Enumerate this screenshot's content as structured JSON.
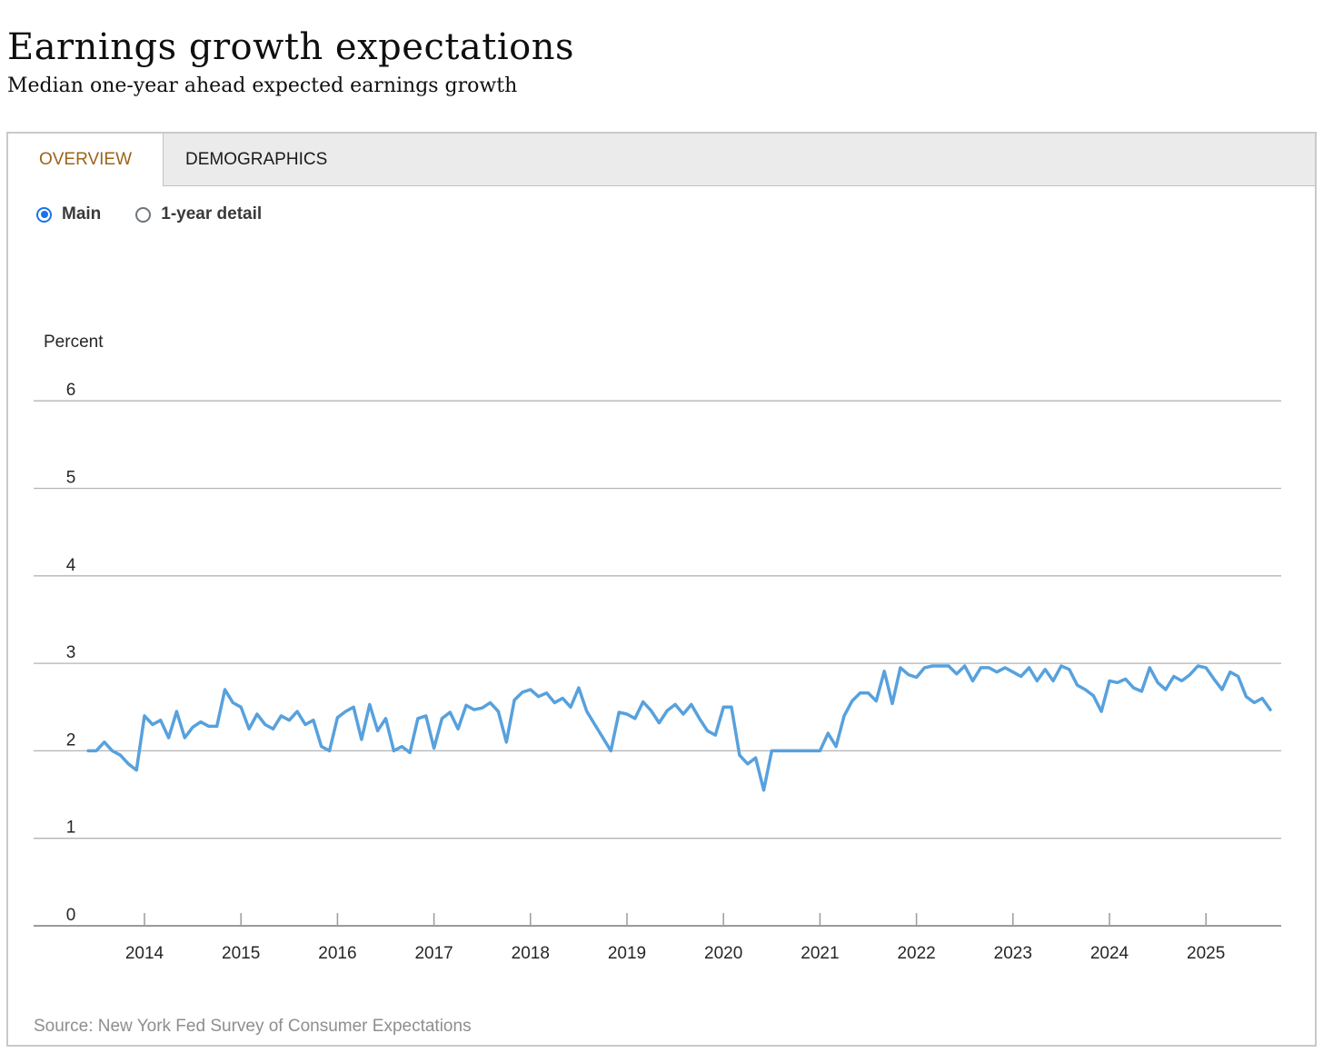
{
  "header": {
    "title": "Earnings growth expectations",
    "subtitle": "Median one-year ahead expected earnings growth"
  },
  "tabs": [
    {
      "label": "OVERVIEW",
      "active": true,
      "accent_color": "#9c6419"
    },
    {
      "label": "DEMOGRAPHICS",
      "active": false
    }
  ],
  "radios": [
    {
      "label": "Main",
      "selected": true,
      "accent_color": "#1a73e8"
    },
    {
      "label": "1-year detail",
      "selected": false
    }
  ],
  "source": {
    "text": "Source: New York Fed Survey of Consumer Expectations"
  },
  "chart_data": {
    "type": "line",
    "title": "Earnings growth expectations",
    "subtitle": "Median one-year ahead expected earnings growth",
    "ylabel": "Percent",
    "xlabel": "",
    "ylim": [
      0,
      6
    ],
    "yticks": [
      6,
      5,
      4,
      3,
      2,
      1,
      0
    ],
    "xticks": [
      2014,
      2015,
      2016,
      2017,
      2018,
      2019,
      2020,
      2021,
      2022,
      2023,
      2024,
      2025
    ],
    "grid": true,
    "legend_position": "none",
    "line_color": "#57a1dd",
    "grid_color": "#b4b4b4",
    "series": [
      {
        "name": "Median one-year ahead expected earnings growth",
        "start_month": "2013-06",
        "frequency": "monthly",
        "values": [
          2.0,
          2.0,
          2.1,
          2.0,
          1.95,
          1.85,
          1.78,
          2.4,
          2.3,
          2.35,
          2.15,
          2.45,
          2.15,
          2.27,
          2.33,
          2.28,
          2.28,
          2.7,
          2.55,
          2.5,
          2.25,
          2.42,
          2.3,
          2.25,
          2.4,
          2.35,
          2.45,
          2.3,
          2.35,
          2.05,
          2.0,
          2.38,
          2.45,
          2.5,
          2.13,
          2.53,
          2.23,
          2.37,
          2.0,
          2.05,
          1.98,
          2.37,
          2.4,
          2.03,
          2.37,
          2.44,
          2.25,
          2.52,
          2.47,
          2.49,
          2.55,
          2.45,
          2.1,
          2.58,
          2.67,
          2.7,
          2.62,
          2.66,
          2.55,
          2.6,
          2.5,
          2.72,
          2.45,
          2.3,
          2.15,
          2.0,
          2.44,
          2.42,
          2.37,
          2.56,
          2.46,
          2.32,
          2.46,
          2.53,
          2.42,
          2.53,
          2.37,
          2.23,
          2.18,
          2.5,
          2.5,
          1.95,
          1.85,
          1.92,
          1.55,
          2.0,
          2.0,
          2.0,
          2.0,
          2.0,
          2.0,
          2.0,
          2.2,
          2.05,
          2.4,
          2.57,
          2.66,
          2.66,
          2.57,
          2.91,
          2.54,
          2.95,
          2.87,
          2.84,
          2.95,
          2.97,
          2.97,
          2.97,
          2.88,
          2.97,
          2.8,
          2.95,
          2.95,
          2.9,
          2.95,
          2.9,
          2.85,
          2.95,
          2.8,
          2.93,
          2.8,
          2.97,
          2.93,
          2.75,
          2.7,
          2.63,
          2.45,
          2.8,
          2.78,
          2.82,
          2.72,
          2.68,
          2.95,
          2.78,
          2.7,
          2.85,
          2.8,
          2.87,
          2.97,
          2.95,
          2.82,
          2.7,
          2.9,
          2.85,
          2.62,
          2.55,
          2.6,
          2.47
        ]
      }
    ]
  }
}
